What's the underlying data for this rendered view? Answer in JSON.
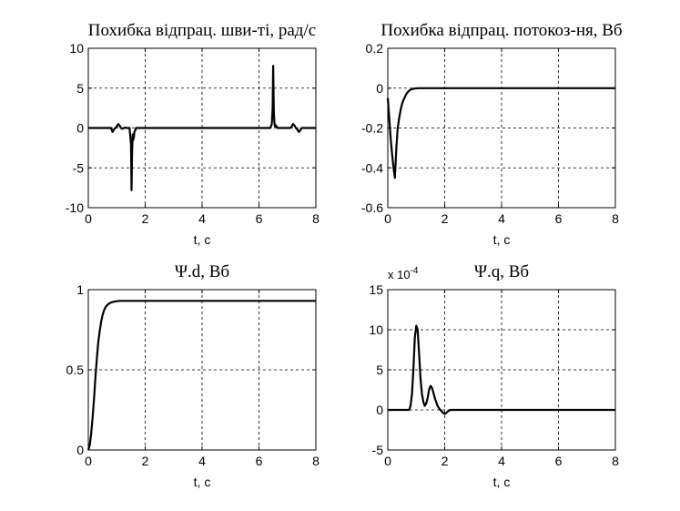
{
  "chart_data": [
    {
      "type": "line",
      "title": "Похибка відпрац. шви-ті, рад/с",
      "xlabel": "t, c",
      "ylabel": "",
      "xlim": [
        0,
        8
      ],
      "ylim": [
        -10,
        10
      ],
      "xticks": [
        0,
        2,
        4,
        6,
        8
      ],
      "yticks": [
        -10,
        -5,
        0,
        5,
        10
      ],
      "exponent": "",
      "grid": true,
      "series": [
        {
          "x": [
            0,
            0.8,
            0.85,
            0.9,
            0.95,
            1.0,
            1.05,
            1.1,
            1.15,
            1.2,
            1.25,
            1.3,
            1.35,
            1.4,
            1.45,
            1.5,
            1.52,
            1.54,
            1.56,
            1.58,
            1.6,
            1.62,
            1.65,
            1.68,
            1.7,
            1.75,
            6.4,
            6.45,
            6.48,
            6.5,
            6.52,
            6.54,
            6.56,
            6.6,
            6.65,
            6.7,
            7.1,
            7.15,
            7.2,
            7.25,
            7.3,
            7.35,
            7.4,
            7.45,
            7.5,
            7.55,
            7.6,
            8
          ],
          "y": [
            0,
            0,
            -0.5,
            -0.2,
            0,
            0.2,
            0.5,
            0.3,
            0,
            -0.1,
            0,
            0.05,
            0,
            0,
            0,
            -2,
            -7.8,
            -3,
            -0.8,
            -1.5,
            -1.2,
            -0.5,
            -0.3,
            0,
            0,
            0,
            0,
            0.5,
            2.5,
            7.8,
            2,
            0.8,
            0.2,
            0.3,
            0,
            0,
            0,
            0.2,
            0.5,
            0.3,
            0,
            -0.2,
            -0.5,
            -0.3,
            0,
            0,
            0,
            0
          ]
        }
      ]
    },
    {
      "type": "line",
      "title": "Похибка відпрац. потокоз-ня, Вб",
      "xlabel": "t, c",
      "ylabel": "",
      "xlim": [
        0,
        8
      ],
      "ylim": [
        -0.6,
        0.2
      ],
      "xticks": [
        0,
        2,
        4,
        6,
        8
      ],
      "yticks": [
        -0.6,
        -0.4,
        -0.2,
        0,
        0.2
      ],
      "exponent": "",
      "grid": true,
      "series": [
        {
          "x": [
            0,
            0.05,
            0.1,
            0.15,
            0.2,
            0.25,
            0.3,
            0.35,
            0.4,
            0.45,
            0.5,
            0.55,
            0.6,
            0.65,
            0.7,
            0.75,
            0.8,
            0.85,
            0.9,
            0.95,
            1.0,
            1.1,
            1.2,
            8
          ],
          "y": [
            -0.05,
            -0.15,
            -0.25,
            -0.33,
            -0.4,
            -0.45,
            -0.3,
            -0.2,
            -0.15,
            -0.11,
            -0.08,
            -0.06,
            -0.045,
            -0.03,
            -0.02,
            -0.013,
            -0.008,
            -0.005,
            -0.003,
            -0.002,
            -0.001,
            0,
            0,
            0
          ]
        }
      ]
    },
    {
      "type": "line",
      "title": "Ψ.d, Вб",
      "xlabel": "t, c",
      "ylabel": "",
      "xlim": [
        0,
        8
      ],
      "ylim": [
        0,
        1
      ],
      "xticks": [
        0,
        2,
        4,
        6,
        8
      ],
      "yticks": [
        0,
        0.5,
        1
      ],
      "exponent": "",
      "grid": true,
      "series": [
        {
          "x": [
            0,
            0.05,
            0.1,
            0.15,
            0.2,
            0.25,
            0.3,
            0.35,
            0.4,
            0.45,
            0.5,
            0.55,
            0.6,
            0.65,
            0.7,
            0.75,
            0.8,
            0.9,
            1.0,
            1.1,
            1.2,
            1.3,
            8
          ],
          "y": [
            0,
            0.03,
            0.1,
            0.2,
            0.32,
            0.45,
            0.57,
            0.67,
            0.74,
            0.8,
            0.84,
            0.87,
            0.89,
            0.9,
            0.91,
            0.915,
            0.92,
            0.925,
            0.928,
            0.93,
            0.93,
            0.93,
            0.93
          ]
        }
      ]
    },
    {
      "type": "line",
      "title": "Ψ.q, Вб",
      "xlabel": "t, c",
      "ylabel": "",
      "xlim": [
        0,
        8
      ],
      "ylim": [
        -5,
        15
      ],
      "xticks": [
        0,
        2,
        4,
        6,
        8
      ],
      "yticks": [
        -5,
        0,
        5,
        10,
        15
      ],
      "exponent": "x 10",
      "exponent_power": "-4",
      "grid": true,
      "series": [
        {
          "x": [
            0,
            0.75,
            0.8,
            0.85,
            0.9,
            0.95,
            1.0,
            1.05,
            1.1,
            1.15,
            1.2,
            1.25,
            1.3,
            1.35,
            1.4,
            1.45,
            1.5,
            1.55,
            1.6,
            1.65,
            1.7,
            1.75,
            1.8,
            1.85,
            1.9,
            1.95,
            2.0,
            2.05,
            2.1,
            2.15,
            2.2,
            2.3,
            8
          ],
          "y": [
            0,
            0,
            0.5,
            2,
            5,
            9,
            10.5,
            10,
            7,
            4,
            2,
            1,
            0.5,
            0.8,
            1.5,
            2.5,
            3,
            2.8,
            2.2,
            1.5,
            1,
            0.5,
            0.2,
            0,
            -0.2,
            -0.4,
            -0.5,
            -0.4,
            -0.2,
            -0.1,
            0,
            0,
            0
          ]
        }
      ]
    }
  ]
}
